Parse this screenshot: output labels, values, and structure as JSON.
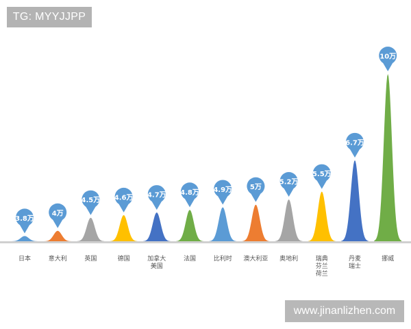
{
  "watermark_tag": "TG: MYYJJPP",
  "site_text": "www.jinanlizhen.com",
  "chart_data": {
    "type": "bar",
    "title": "",
    "xlabel": "",
    "ylabel": "",
    "ylim": [
      0,
      10.5
    ],
    "grid": false,
    "legend": "none",
    "categories": [
      [
        "日本"
      ],
      [
        "意大利"
      ],
      [
        "英国"
      ],
      [
        "德国"
      ],
      [
        "加拿大",
        "美国"
      ],
      [
        "法国"
      ],
      [
        "比利时"
      ],
      [
        "澳大利亚"
      ],
      [
        "奥地利"
      ],
      [
        "瑞典",
        "芬兰",
        "荷兰"
      ],
      [
        "丹麦",
        "瑞士"
      ],
      [
        "挪威"
      ]
    ],
    "values": [
      3.8,
      4,
      4.5,
      4.6,
      4.7,
      4.8,
      4.9,
      5,
      5.2,
      5.5,
      6.7,
      10
    ],
    "data_labels": [
      "3.8万",
      "4万",
      "4.5万",
      "4.6万",
      "4.7万",
      "4.8万",
      "4.9万",
      "5万",
      "5.2万",
      "5.5万",
      "6.7万",
      "10万"
    ],
    "colors": [
      "#5b9bd5",
      "#ed7d31",
      "#a5a5a5",
      "#ffc000",
      "#4472c4",
      "#70ad47",
      "#5b9bd5",
      "#ed7d31",
      "#a5a5a5",
      "#ffc000",
      "#4472c4",
      "#70ad47"
    ],
    "label_bubble_color": "#5b9bd5",
    "baseline_color": "#d0d0d0"
  }
}
